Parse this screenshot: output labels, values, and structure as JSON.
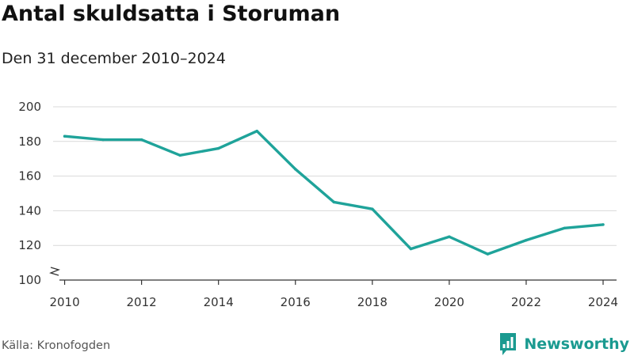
{
  "header": {
    "title": "Antal skuldsatta i Storuman",
    "subtitle": "Den 31 december 2010–2024"
  },
  "footer": {
    "source": "Källa: Kronofogden",
    "brand": "Newsworthy",
    "brand_icon": "bar-chart-speech-bubble-icon"
  },
  "colors": {
    "line": "#1fa39a",
    "grid": "#d9d9d9",
    "axis": "#333333",
    "brand": "#1a9a90"
  },
  "chart_data": {
    "type": "line",
    "x": [
      2010,
      2011,
      2012,
      2013,
      2014,
      2015,
      2016,
      2017,
      2018,
      2019,
      2020,
      2021,
      2022,
      2023,
      2024
    ],
    "series": [
      {
        "values": [
          183,
          181,
          181,
          172,
          176,
          186,
          164,
          145,
          141,
          118,
          125,
          115,
          123,
          130,
          132
        ]
      }
    ],
    "xticks": [
      2010,
      2012,
      2014,
      2016,
      2018,
      2020,
      2022,
      2024
    ],
    "yticks": [
      100,
      120,
      140,
      160,
      180,
      200
    ],
    "xlim": [
      2009.7,
      2024.35
    ],
    "ylim": [
      100,
      200
    ],
    "y_axis_break": true,
    "grid": "horizontal",
    "xlabel": "",
    "ylabel": ""
  }
}
